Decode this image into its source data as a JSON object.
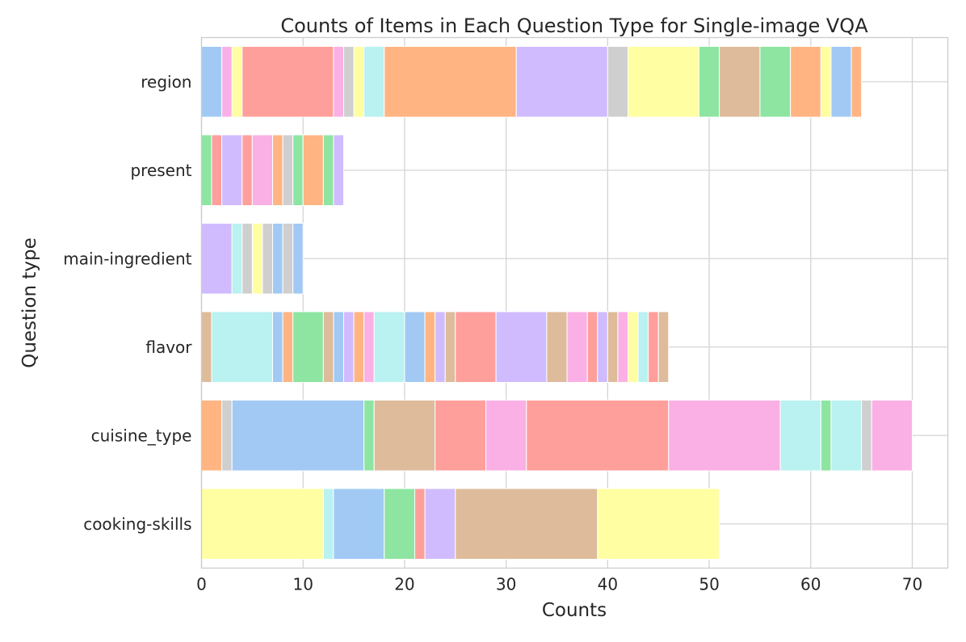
{
  "chart_data": {
    "type": "bar",
    "orientation": "horizontal",
    "stacked": true,
    "title": "Counts of Items in Each Question Type for Single-image VQA",
    "xlabel": "Counts",
    "ylabel": "Question type",
    "xlim": [
      0,
      73.5
    ],
    "xticks": [
      0,
      10,
      20,
      30,
      40,
      50,
      60,
      70
    ],
    "grid": true,
    "legend": "none",
    "categories": [
      "region",
      "present",
      "main-ingredient",
      "flavor",
      "cuisine_type",
      "cooking-skills"
    ],
    "palette": {
      "blue": "#a1c9f4",
      "orange": "#ffb482",
      "green": "#8de5a1",
      "red": "#ff9f9b",
      "purple": "#d0bbff",
      "brown": "#debb9b",
      "pink": "#fab0e4",
      "gray": "#cfcfcf",
      "yellow": "#fffea3",
      "cyan": "#b9f2f0"
    },
    "stacks": [
      {
        "category": "region",
        "segments": [
          {
            "value": 2,
            "color": "blue"
          },
          {
            "value": 1,
            "color": "pink"
          },
          {
            "value": 1,
            "color": "yellow"
          },
          {
            "value": 9,
            "color": "red"
          },
          {
            "value": 1,
            "color": "pink"
          },
          {
            "value": 1,
            "color": "gray"
          },
          {
            "value": 1,
            "color": "yellow"
          },
          {
            "value": 2,
            "color": "cyan"
          },
          {
            "value": 13,
            "color": "orange"
          },
          {
            "value": 9,
            "color": "purple"
          },
          {
            "value": 2,
            "color": "gray"
          },
          {
            "value": 7,
            "color": "yellow"
          },
          {
            "value": 2,
            "color": "green"
          },
          {
            "value": 4,
            "color": "brown"
          },
          {
            "value": 3,
            "color": "green"
          },
          {
            "value": 3,
            "color": "orange"
          },
          {
            "value": 1,
            "color": "yellow"
          },
          {
            "value": 2,
            "color": "blue"
          },
          {
            "value": 1,
            "color": "orange"
          }
        ]
      },
      {
        "category": "present",
        "segments": [
          {
            "value": 1,
            "color": "green"
          },
          {
            "value": 1,
            "color": "red"
          },
          {
            "value": 2,
            "color": "purple"
          },
          {
            "value": 1,
            "color": "red"
          },
          {
            "value": 2,
            "color": "pink"
          },
          {
            "value": 1,
            "color": "orange"
          },
          {
            "value": 1,
            "color": "gray"
          },
          {
            "value": 1,
            "color": "green"
          },
          {
            "value": 2,
            "color": "orange"
          },
          {
            "value": 1,
            "color": "green"
          },
          {
            "value": 1,
            "color": "purple"
          }
        ]
      },
      {
        "category": "main-ingredient",
        "segments": [
          {
            "value": 3,
            "color": "purple"
          },
          {
            "value": 1,
            "color": "cyan"
          },
          {
            "value": 1,
            "color": "gray"
          },
          {
            "value": 1,
            "color": "yellow"
          },
          {
            "value": 1,
            "color": "gray"
          },
          {
            "value": 1,
            "color": "blue"
          },
          {
            "value": 1,
            "color": "gray"
          },
          {
            "value": 1,
            "color": "blue"
          }
        ]
      },
      {
        "category": "flavor",
        "segments": [
          {
            "value": 1,
            "color": "brown"
          },
          {
            "value": 6,
            "color": "cyan"
          },
          {
            "value": 1,
            "color": "blue"
          },
          {
            "value": 1,
            "color": "orange"
          },
          {
            "value": 3,
            "color": "green"
          },
          {
            "value": 1,
            "color": "brown"
          },
          {
            "value": 1,
            "color": "blue"
          },
          {
            "value": 1,
            "color": "purple"
          },
          {
            "value": 1,
            "color": "orange"
          },
          {
            "value": 1,
            "color": "pink"
          },
          {
            "value": 3,
            "color": "cyan"
          },
          {
            "value": 2,
            "color": "blue"
          },
          {
            "value": 1,
            "color": "orange"
          },
          {
            "value": 1,
            "color": "purple"
          },
          {
            "value": 1,
            "color": "brown"
          },
          {
            "value": 4,
            "color": "red"
          },
          {
            "value": 5,
            "color": "purple"
          },
          {
            "value": 2,
            "color": "brown"
          },
          {
            "value": 2,
            "color": "pink"
          },
          {
            "value": 1,
            "color": "red"
          },
          {
            "value": 1,
            "color": "purple"
          },
          {
            "value": 1,
            "color": "brown"
          },
          {
            "value": 1,
            "color": "pink"
          },
          {
            "value": 1,
            "color": "yellow"
          },
          {
            "value": 1,
            "color": "cyan"
          },
          {
            "value": 1,
            "color": "red"
          },
          {
            "value": 1,
            "color": "brown"
          }
        ]
      },
      {
        "category": "cuisine_type",
        "segments": [
          {
            "value": 2,
            "color": "orange"
          },
          {
            "value": 1,
            "color": "gray"
          },
          {
            "value": 13,
            "color": "blue"
          },
          {
            "value": 1,
            "color": "green"
          },
          {
            "value": 6,
            "color": "brown"
          },
          {
            "value": 5,
            "color": "red"
          },
          {
            "value": 4,
            "color": "pink"
          },
          {
            "value": 14,
            "color": "red"
          },
          {
            "value": 11,
            "color": "pink"
          },
          {
            "value": 4,
            "color": "cyan"
          },
          {
            "value": 1,
            "color": "green"
          },
          {
            "value": 3,
            "color": "cyan"
          },
          {
            "value": 1,
            "color": "gray"
          },
          {
            "value": 4,
            "color": "pink"
          }
        ]
      },
      {
        "category": "cooking-skills",
        "segments": [
          {
            "value": 12,
            "color": "yellow"
          },
          {
            "value": 1,
            "color": "cyan"
          },
          {
            "value": 5,
            "color": "blue"
          },
          {
            "value": 3,
            "color": "green"
          },
          {
            "value": 1,
            "color": "red"
          },
          {
            "value": 3,
            "color": "purple"
          },
          {
            "value": 14,
            "color": "brown"
          },
          {
            "value": 12,
            "color": "yellow"
          }
        ]
      }
    ]
  }
}
